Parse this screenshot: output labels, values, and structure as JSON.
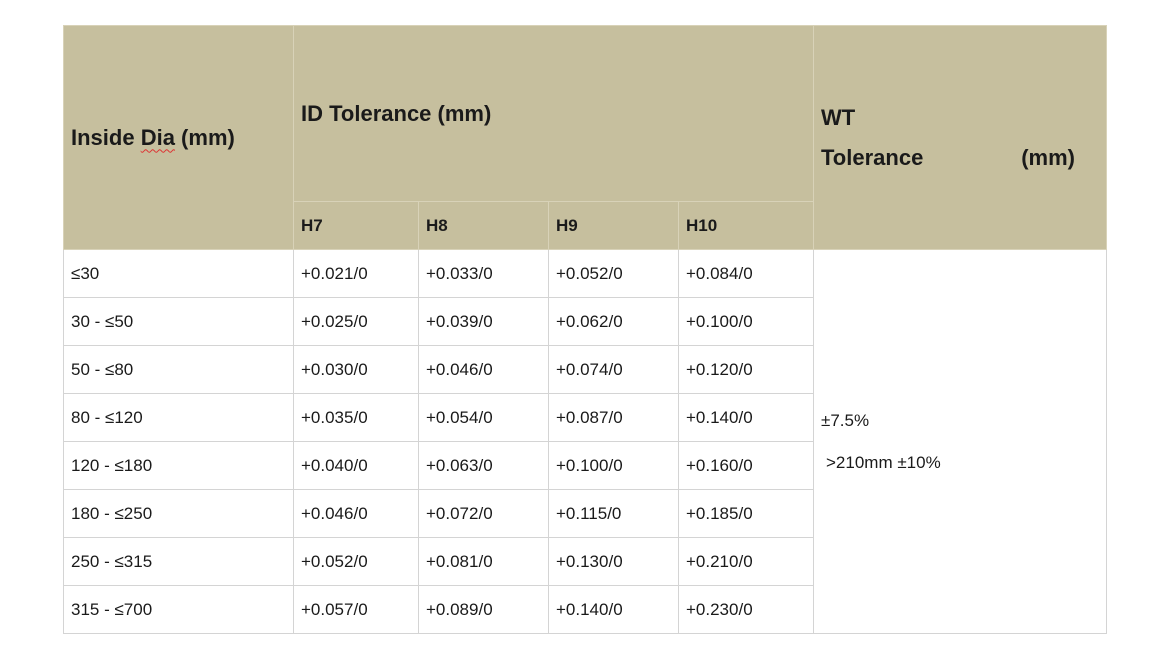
{
  "header": {
    "inside_dia_pre": "Inside ",
    "inside_dia_word": "Dia",
    "inside_dia_post": " (mm)",
    "id_tolerance": "ID Tolerance (mm)",
    "wt_line1": "WT",
    "wt_line2_a": "Tolerance",
    "wt_line2_b": "(mm)",
    "grades": [
      "H7",
      "H8",
      "H9",
      "H10"
    ]
  },
  "rows": [
    {
      "range": "≤30",
      "h7": "+0.021/0",
      "h8": "+0.033/0",
      "h9": "+0.052/0",
      "h10": "+0.084/0"
    },
    {
      "range": "30 - ≤50",
      "h7": "+0.025/0",
      "h8": "+0.039/0",
      "h9": "+0.062/0",
      "h10": "+0.100/0"
    },
    {
      "range": "50 - ≤80",
      "h7": "+0.030/0",
      "h8": "+0.046/0",
      "h9": "+0.074/0",
      "h10": "+0.120/0"
    },
    {
      "range": "80 - ≤120",
      "h7": "+0.035/0",
      "h8": "+0.054/0",
      "h9": "+0.087/0",
      "h10": "+0.140/0"
    },
    {
      "range": "120 - ≤180",
      "h7": "+0.040/0",
      "h8": "+0.063/0",
      "h9": "+0.100/0",
      "h10": "+0.160/0"
    },
    {
      "range": "180 - ≤250",
      "h7": "+0.046/0",
      "h8": "+0.072/0",
      "h9": "+0.115/0",
      "h10": "+0.185/0"
    },
    {
      "range": "250 - ≤315",
      "h7": "+0.052/0",
      "h8": "+0.081/0",
      "h9": "+0.130/0",
      "h10": "+0.210/0"
    },
    {
      "range": "315 - ≤700",
      "h7": "+0.057/0",
      "h8": "+0.089/0",
      "h9": "+0.140/0",
      "h10": "+0.230/0"
    }
  ],
  "wt_values": {
    "standard": "±7.5%",
    "large": ">210mm ±10%"
  }
}
